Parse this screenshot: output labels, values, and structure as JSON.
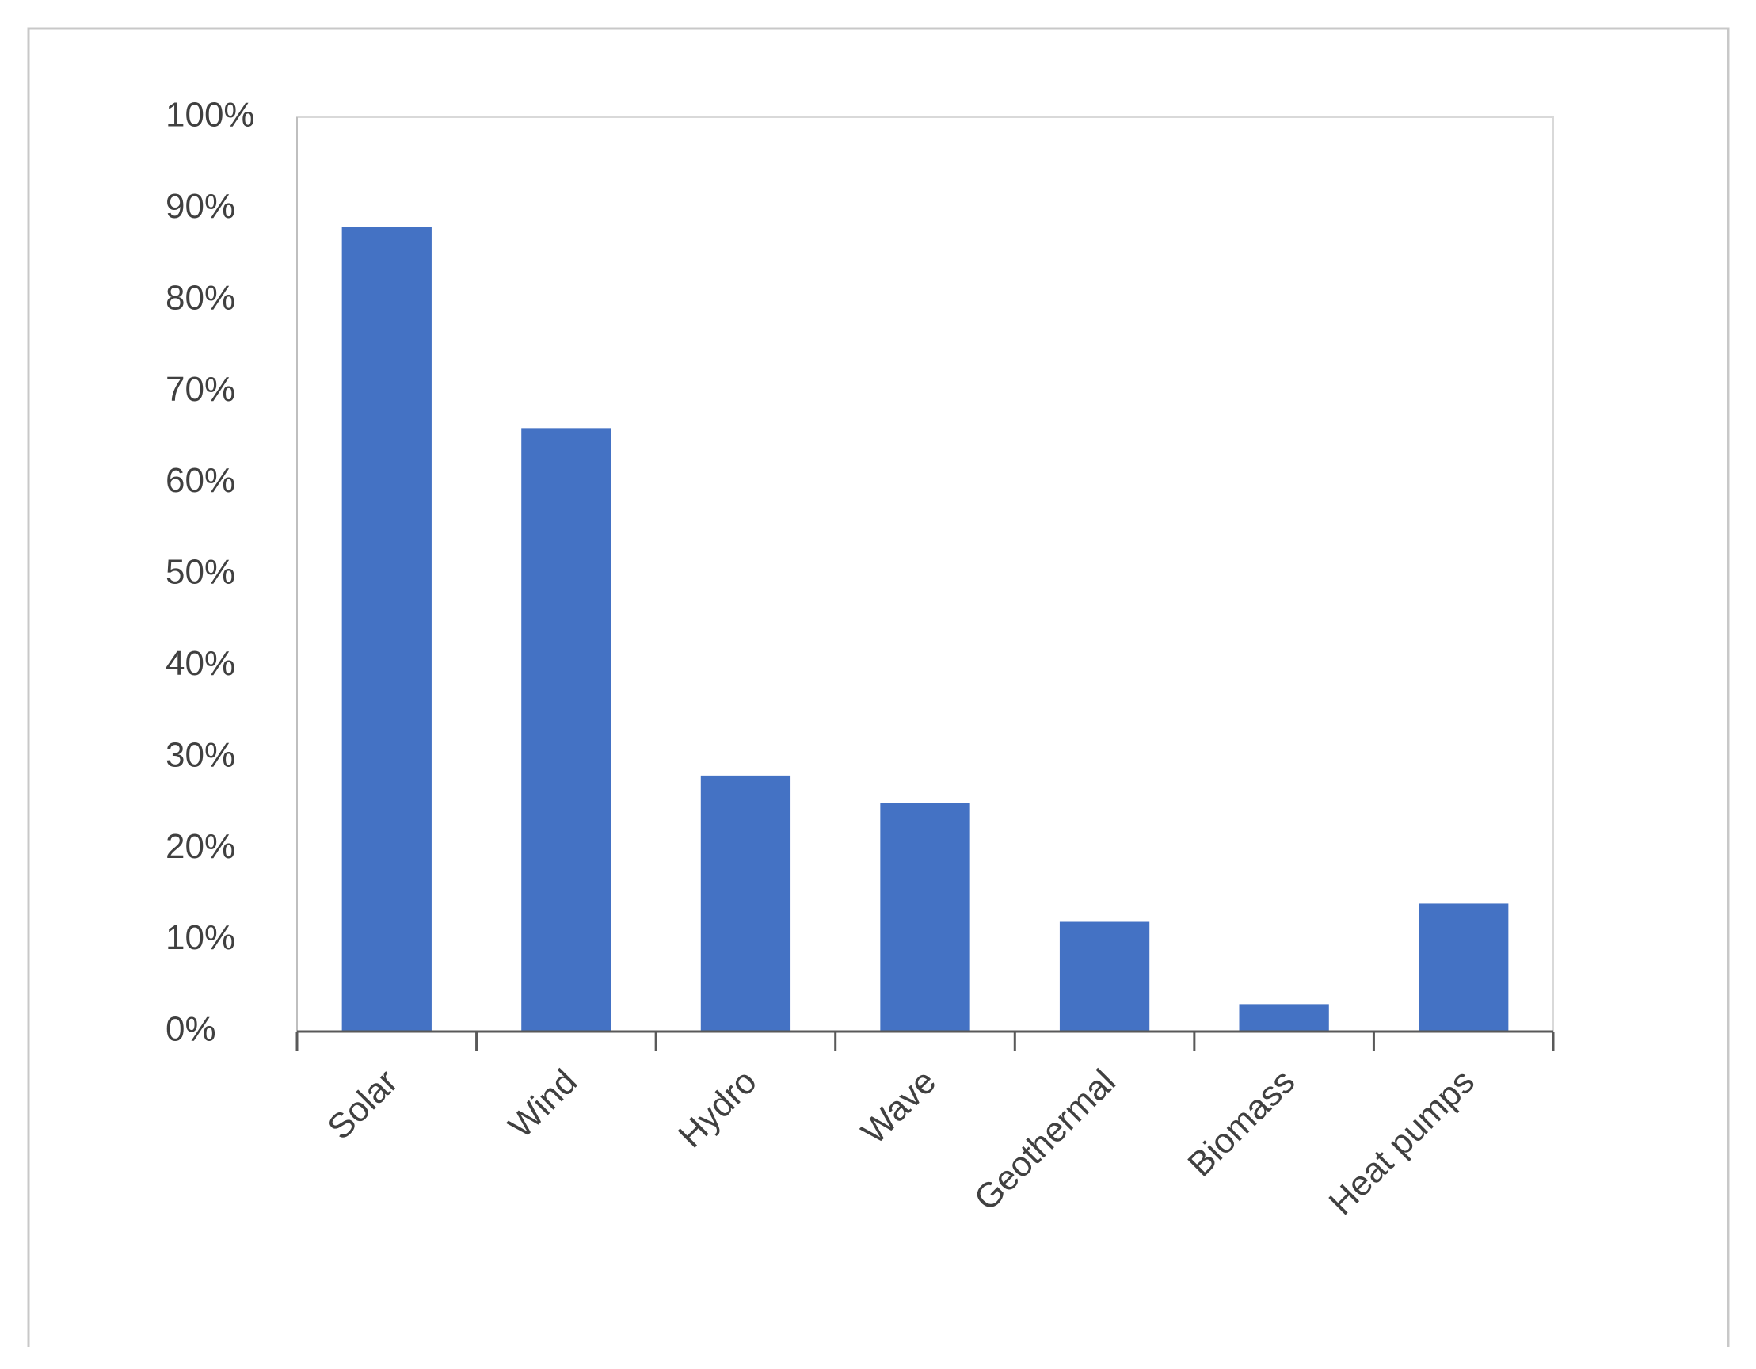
{
  "chart_data": {
    "type": "bar",
    "categories": [
      "Solar",
      "Wind",
      "Hydro",
      "Wave",
      "Geothermal",
      "Biomass",
      "Heat pumps"
    ],
    "values": [
      88,
      66,
      28,
      25,
      12,
      3,
      14
    ],
    "color": "#4472c4",
    "ylim": [
      0,
      100
    ],
    "yticks": [
      {
        "value": 0,
        "label": "0%"
      },
      {
        "value": 10,
        "label": "10%"
      },
      {
        "value": 20,
        "label": "20%"
      },
      {
        "value": 30,
        "label": "30%"
      },
      {
        "value": 40,
        "label": "40%"
      },
      {
        "value": 50,
        "label": "50%"
      },
      {
        "value": 60,
        "label": "60%"
      },
      {
        "value": 70,
        "label": "70%"
      },
      {
        "value": 80,
        "label": "80%"
      },
      {
        "value": 90,
        "label": "90%"
      },
      {
        "value": 100,
        "label": "100%"
      }
    ],
    "grid": false
  }
}
